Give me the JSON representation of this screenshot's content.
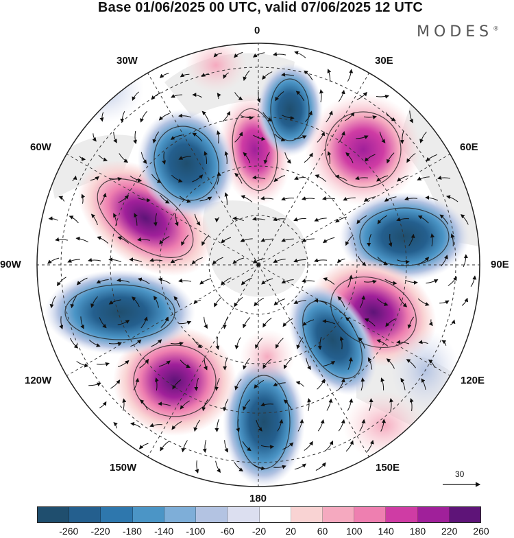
{
  "title": "Base 01/06/2025 00 UTC, valid 07/06/2025 12 UTC",
  "brand": "MODES",
  "brand_mark": "®",
  "longitude_labels": {
    "n0": "0",
    "n30e": "30E",
    "n60e": "60E",
    "n90e": "90E",
    "n120e": "120E",
    "n150e": "150E",
    "n180": "180",
    "n150w": "150W",
    "n120w": "120W",
    "n90w": "90W",
    "n60w": "60W",
    "n30w": "30W"
  },
  "reference_vector": "30",
  "colorbar": {
    "colors": [
      "#1f4e6e",
      "#245f8e",
      "#2e77ad",
      "#4b95c6",
      "#7eaed8",
      "#b3c3e2",
      "#dcdff0",
      "#ffffff",
      "#f9d3d3",
      "#f5a9bf",
      "#ee7fb0",
      "#cf3ca4",
      "#a0209a",
      "#5e1478"
    ],
    "tick_labels": [
      "-260",
      "-220",
      "-180",
      "-140",
      "-100",
      "-60",
      "-20",
      "20",
      "60",
      "100",
      "140",
      "180",
      "220",
      "260"
    ]
  }
}
